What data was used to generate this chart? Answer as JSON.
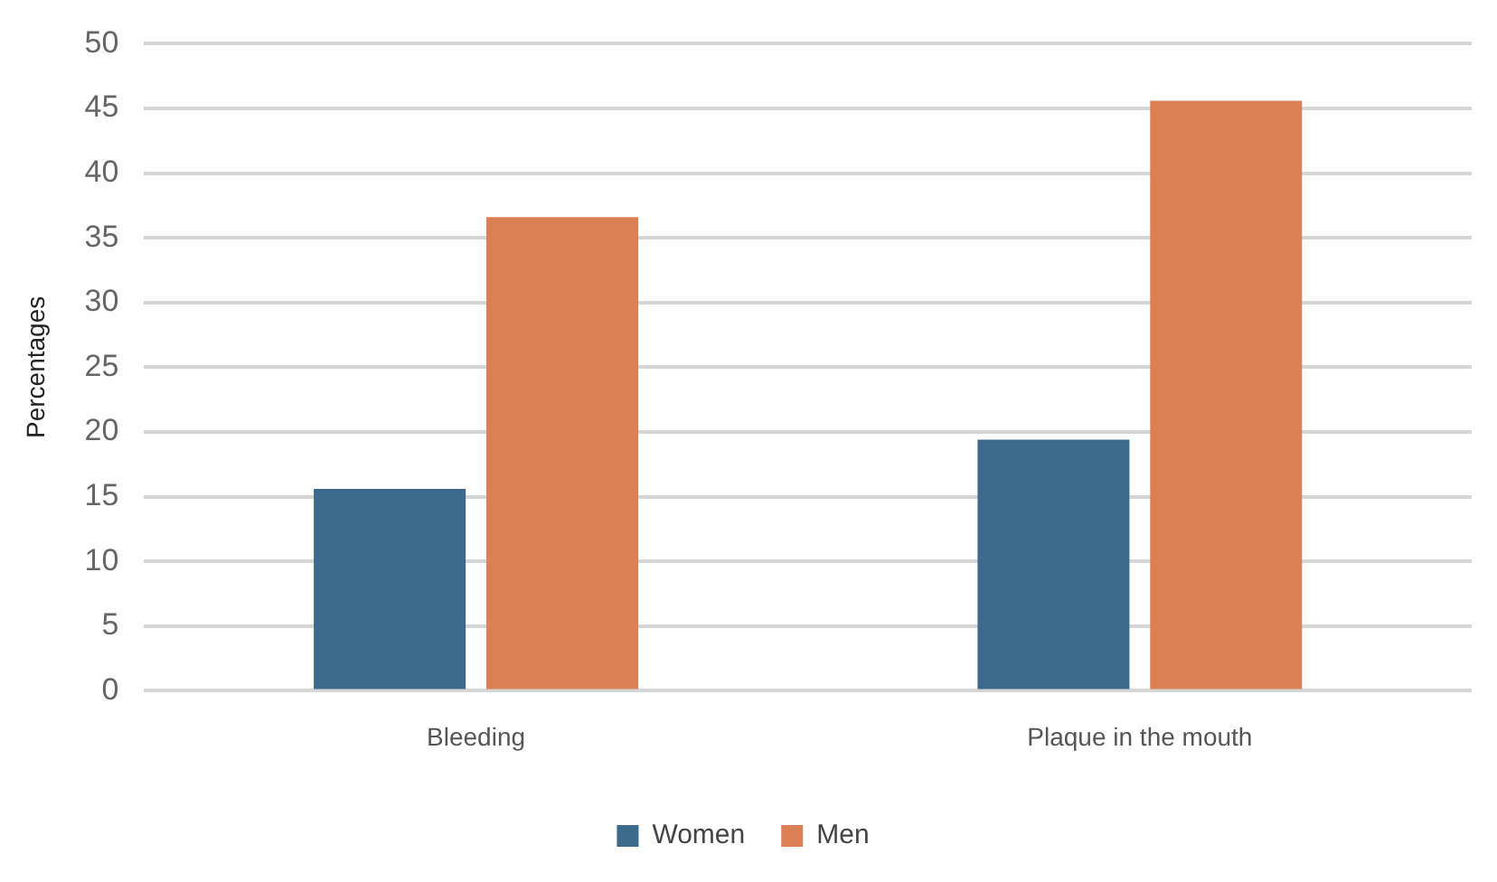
{
  "chart_data": {
    "type": "bar",
    "ylabel": "Percentages",
    "categories": [
      "Bleeding",
      "Plaque in the mouth"
    ],
    "series": [
      {
        "name": "Women",
        "color": "#3b6a8c",
        "values": [
          15.6,
          19.4
        ]
      },
      {
        "name": "Men",
        "color": "#db8054",
        "values": [
          36.6,
          45.6
        ]
      }
    ],
    "ylim": [
      0,
      50
    ],
    "yticks": [
      0,
      5,
      10,
      15,
      20,
      25,
      30,
      35,
      40,
      45,
      50
    ],
    "grid": "y",
    "legend": "bottom"
  }
}
